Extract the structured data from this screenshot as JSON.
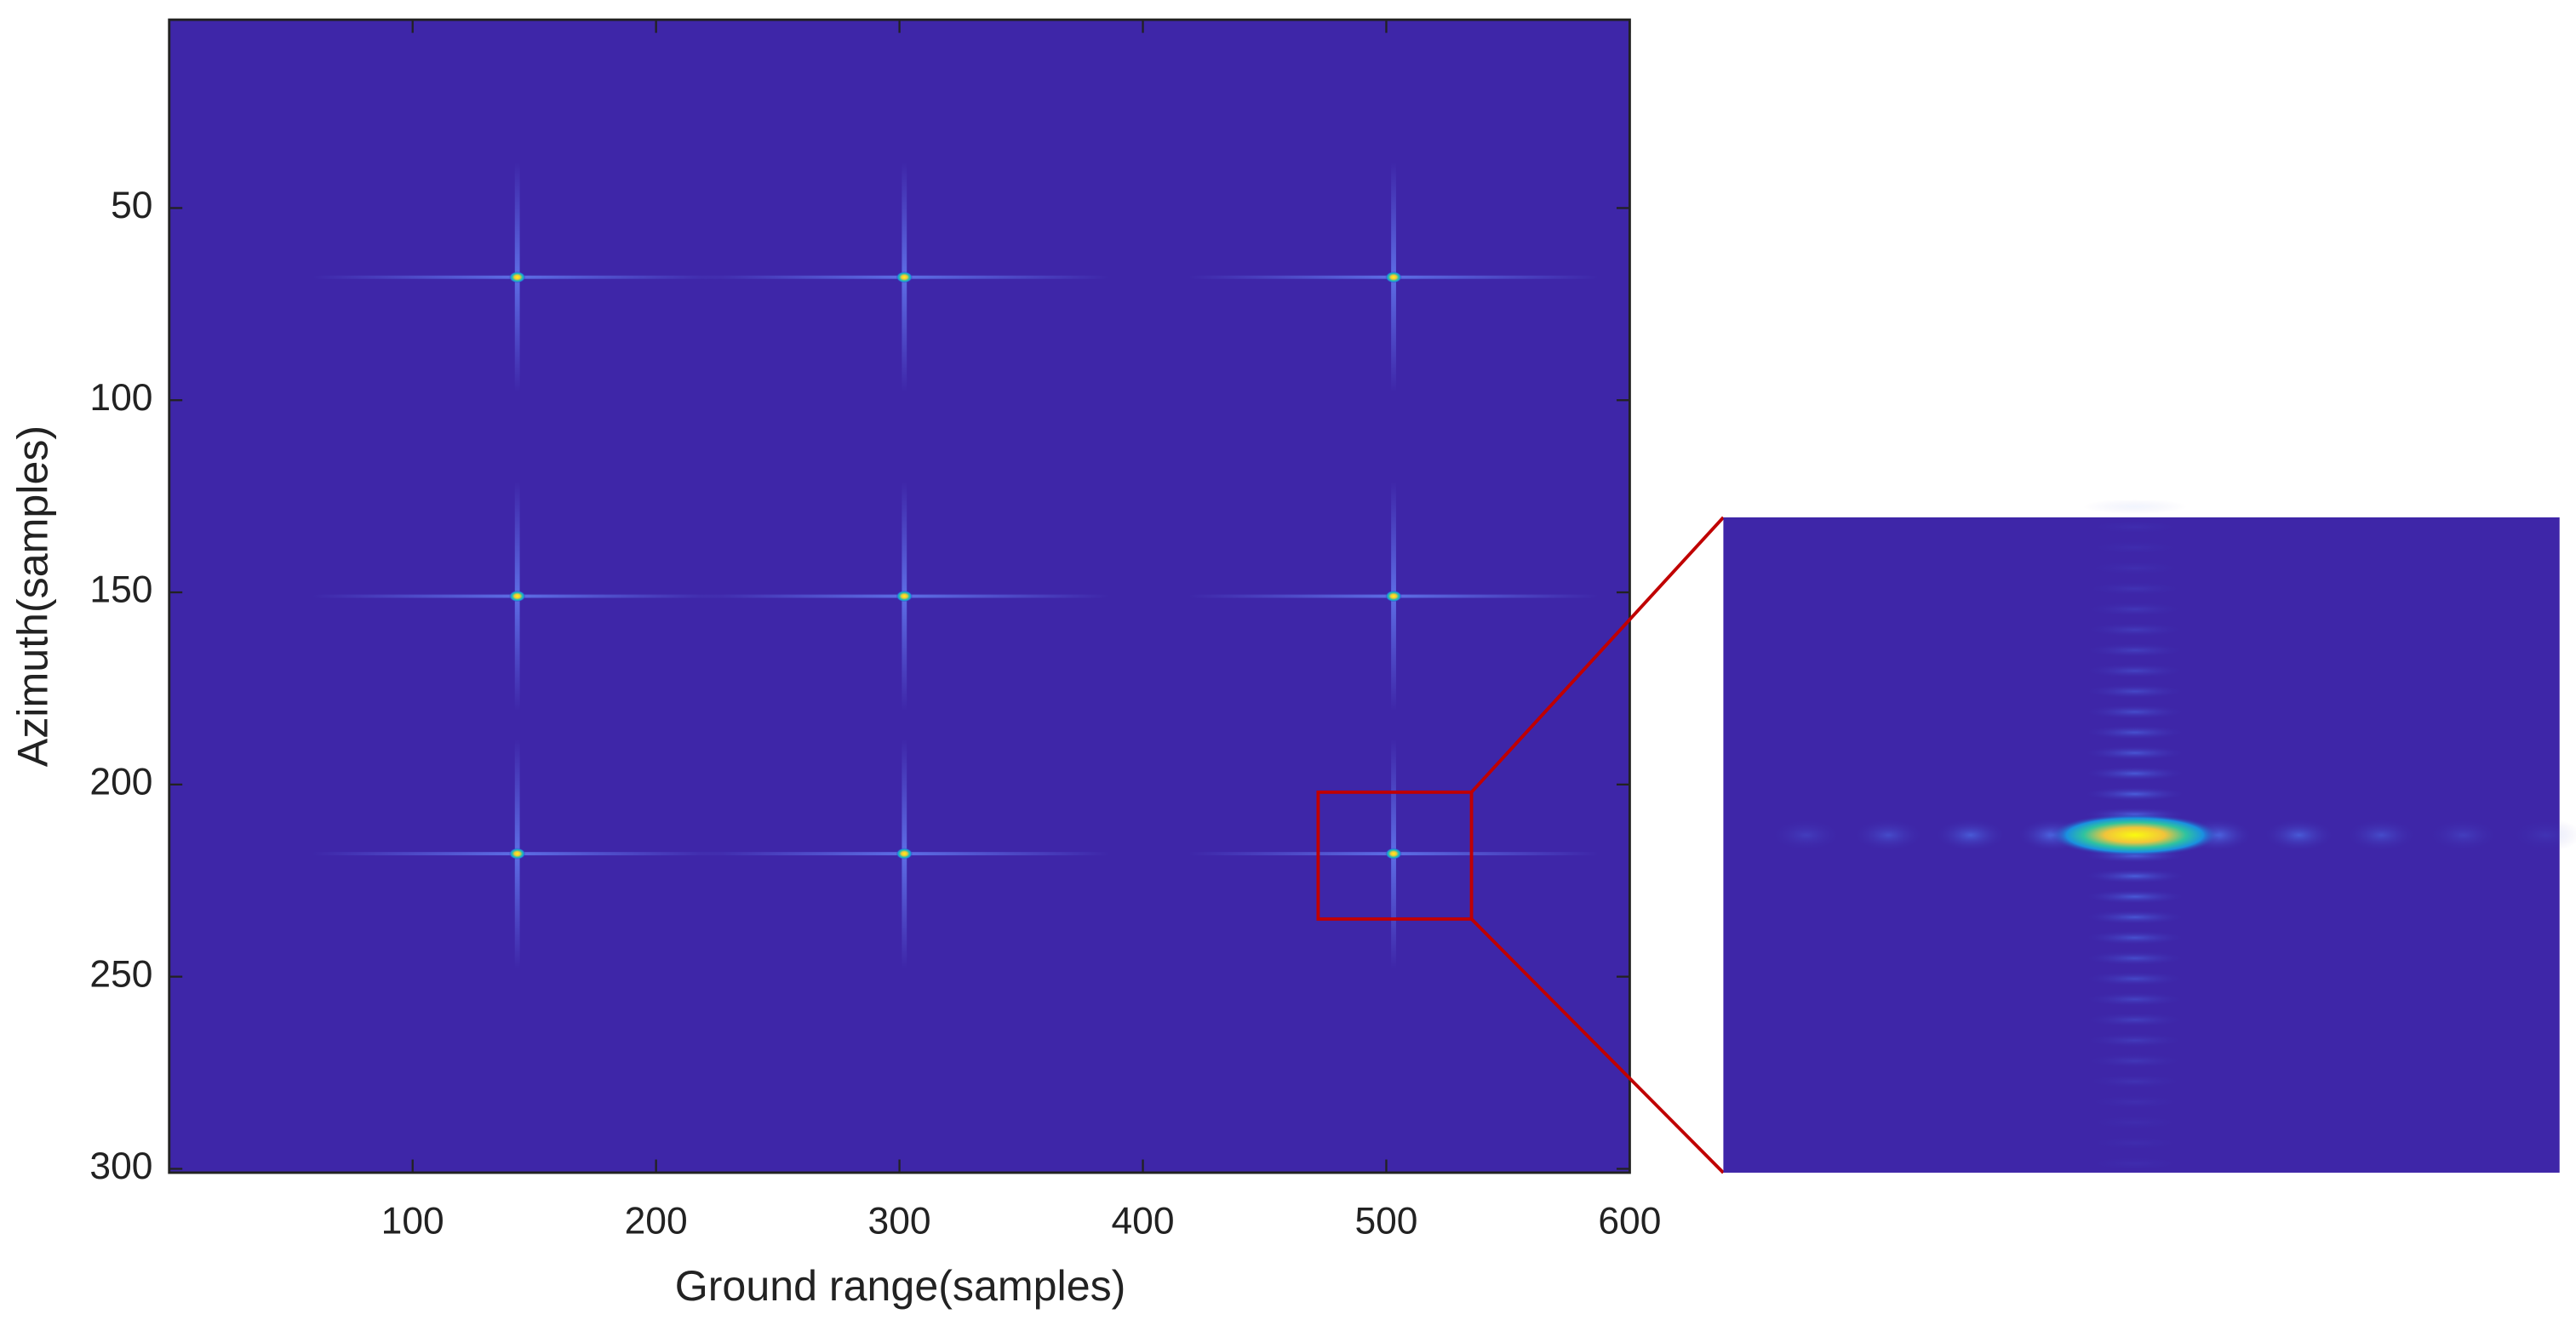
{
  "chart_data": {
    "type": "heatmap",
    "xlabel": "Ground range(samples)",
    "ylabel": "Azimuth(samples)",
    "xlim": [
      0,
      600
    ],
    "ylim": [
      1,
      301
    ],
    "y_reversed": true,
    "xticks": [
      100,
      200,
      300,
      400,
      500,
      600
    ],
    "yticks": [
      50,
      100,
      150,
      200,
      250,
      300
    ],
    "background": "#3e26a8",
    "points": {
      "x": [
        143,
        302,
        503,
        143,
        302,
        503,
        143,
        302,
        503
      ],
      "y": [
        68,
        68,
        68,
        151,
        151,
        151,
        218,
        218,
        218
      ],
      "color": "#f2e12a"
    },
    "zoom": {
      "xlim": [
        472,
        535
      ],
      "ylim": [
        202,
        235
      ],
      "color": "#c00000"
    }
  }
}
